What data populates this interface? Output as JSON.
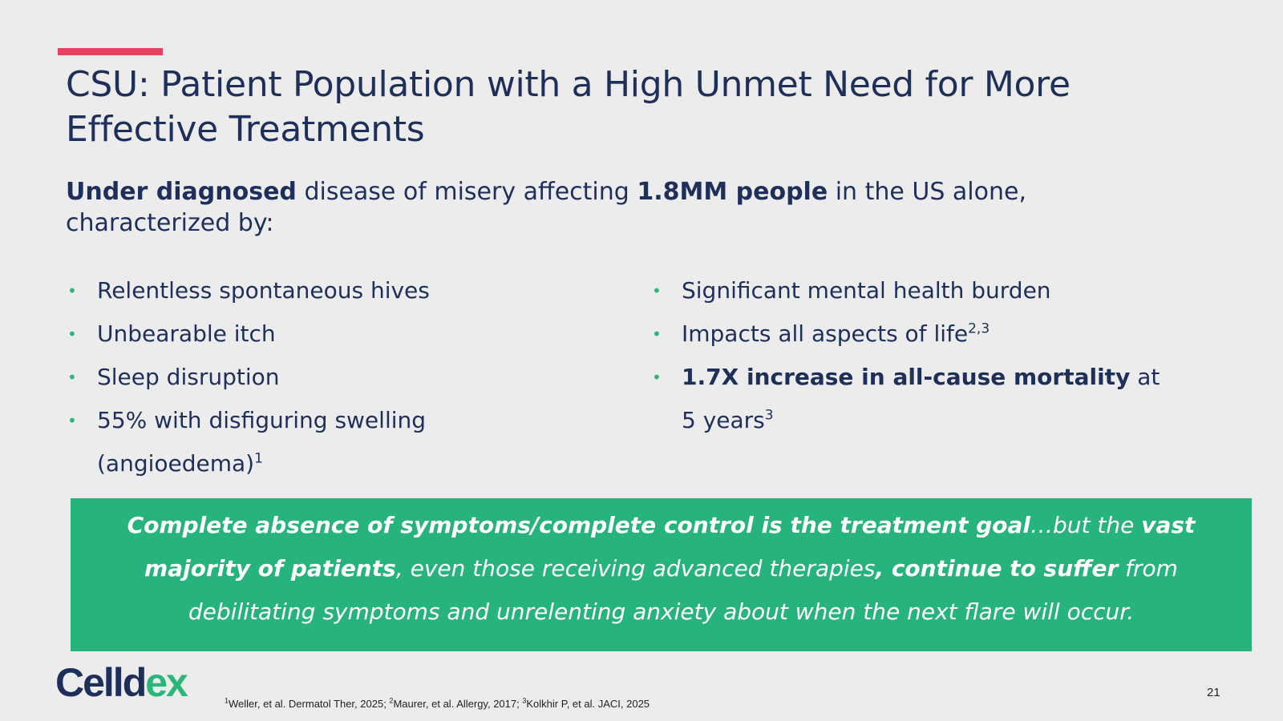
{
  "slide": {
    "title_line1": "CSU: Patient Population with a High Unmet Need for More",
    "title_line2": "Effective Treatments",
    "subtitle": {
      "bold1": "Under diagnosed",
      "text1": " disease of misery affecting ",
      "bold2": "1.8MM people",
      "text2": " in the US alone,",
      "line2": "characterized by:"
    },
    "bullet_symbol": "•",
    "left_bullets": [
      {
        "text": "Relentless spontaneous hives"
      },
      {
        "text": "Unbearable itch"
      },
      {
        "text": "Sleep disruption"
      },
      {
        "text": "55% with disfiguring swelling (angioedema)",
        "sup": "1"
      }
    ],
    "right_bullets": [
      {
        "text": "Significant mental health burden"
      },
      {
        "text": "Impacts all aspects of life",
        "sup": "2,3"
      },
      {
        "bold": "1.7X increase in all-cause mortality",
        "text": " at 5 years",
        "sup": "3"
      }
    ],
    "callout": {
      "bold1": "Complete absence of symptoms/complete control is the treatment goal",
      "text1": "…but the ",
      "bold2": "vast majority of patients",
      "text2": ", even those receiving advanced therapies",
      "bold3": ", continue to suffer",
      "text3": " from debilitating symptoms and unrelenting anxiety about when the next flare will occur."
    },
    "logo": {
      "main": "Celld",
      "accent": "ex"
    },
    "footnotes": [
      {
        "sup": "1",
        "text": "Weller, et al. Dermatol Ther, 2025; "
      },
      {
        "sup": "2",
        "text": "Maurer, et al. Allergy, 2017; "
      },
      {
        "sup": "3",
        "text": "Kolkhir P, et al. JACI, 2025"
      }
    ],
    "page_number": "21",
    "colors": {
      "background": "#ececec",
      "accent_bar": "#e8415f",
      "navy_text": "#1e2f5a",
      "green": "#27b47c"
    }
  }
}
